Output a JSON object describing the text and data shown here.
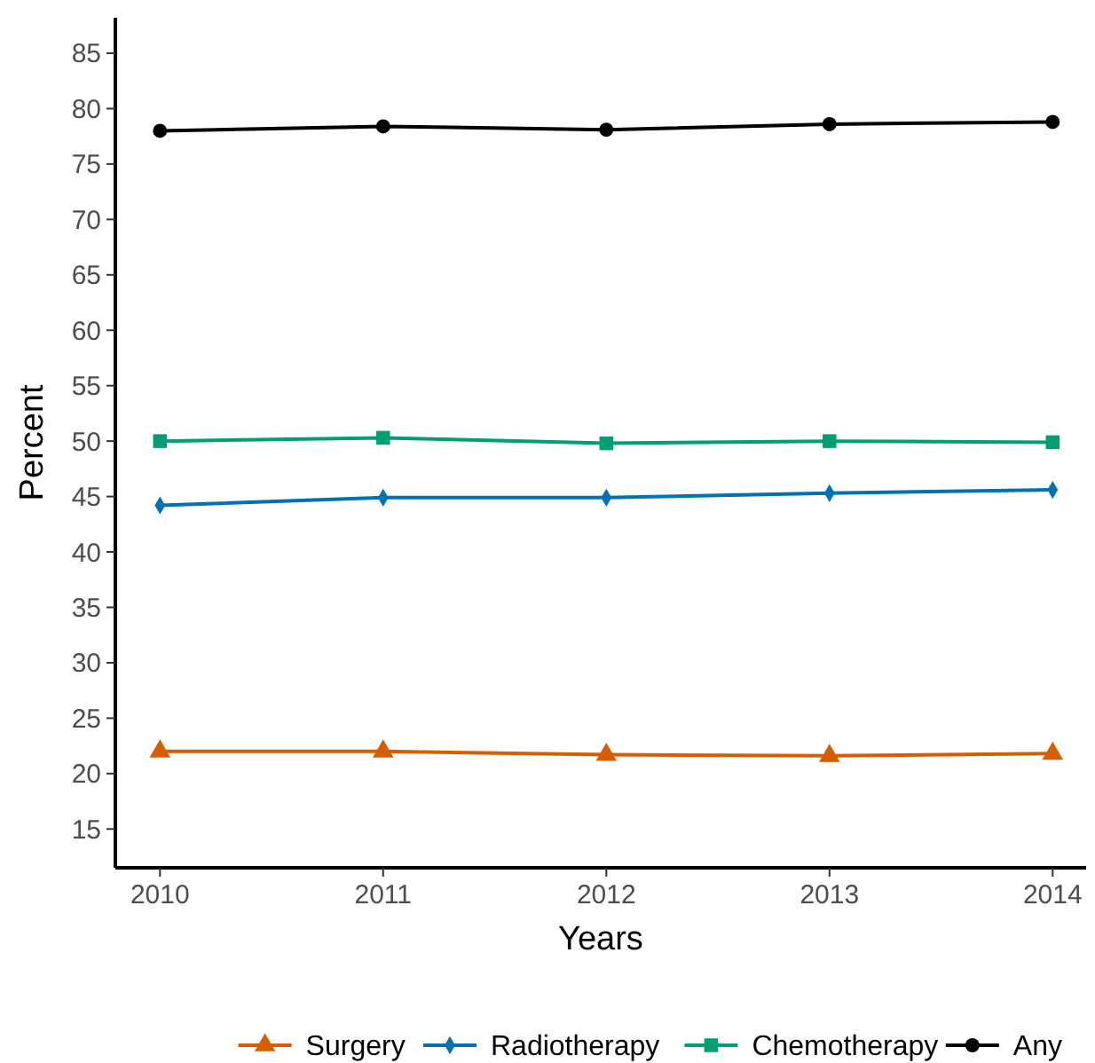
{
  "chart_data": {
    "type": "line",
    "xlabel": "Years",
    "ylabel": "Percent",
    "x": [
      2010,
      2011,
      2012,
      2013,
      2014
    ],
    "xlim": [
      2009.8,
      2014.15
    ],
    "xticks": [
      2010,
      2011,
      2012,
      2013,
      2014
    ],
    "ylim": [
      11.5,
      88.2
    ],
    "yticks": [
      15,
      20,
      25,
      30,
      35,
      40,
      45,
      50,
      55,
      60,
      65,
      70,
      75,
      80,
      85
    ],
    "grid": false,
    "legend": "bottom",
    "line_style": "solid",
    "series": [
      {
        "name": "Surgery",
        "color": "#d55e00",
        "marker": "triangle",
        "values": [
          22.0,
          22.0,
          21.7,
          21.6,
          21.8
        ]
      },
      {
        "name": "Radiotherapy",
        "color": "#0072b2",
        "marker": "diamond",
        "values": [
          44.2,
          44.9,
          44.9,
          45.3,
          45.6
        ]
      },
      {
        "name": "Chemotherapy",
        "color": "#009e73",
        "marker": "square",
        "values": [
          50.0,
          50.3,
          49.8,
          50.0,
          49.9
        ]
      },
      {
        "name": "Any",
        "color": "#000000",
        "marker": "circle",
        "values": [
          78.0,
          78.4,
          78.1,
          78.6,
          78.8
        ]
      }
    ]
  }
}
